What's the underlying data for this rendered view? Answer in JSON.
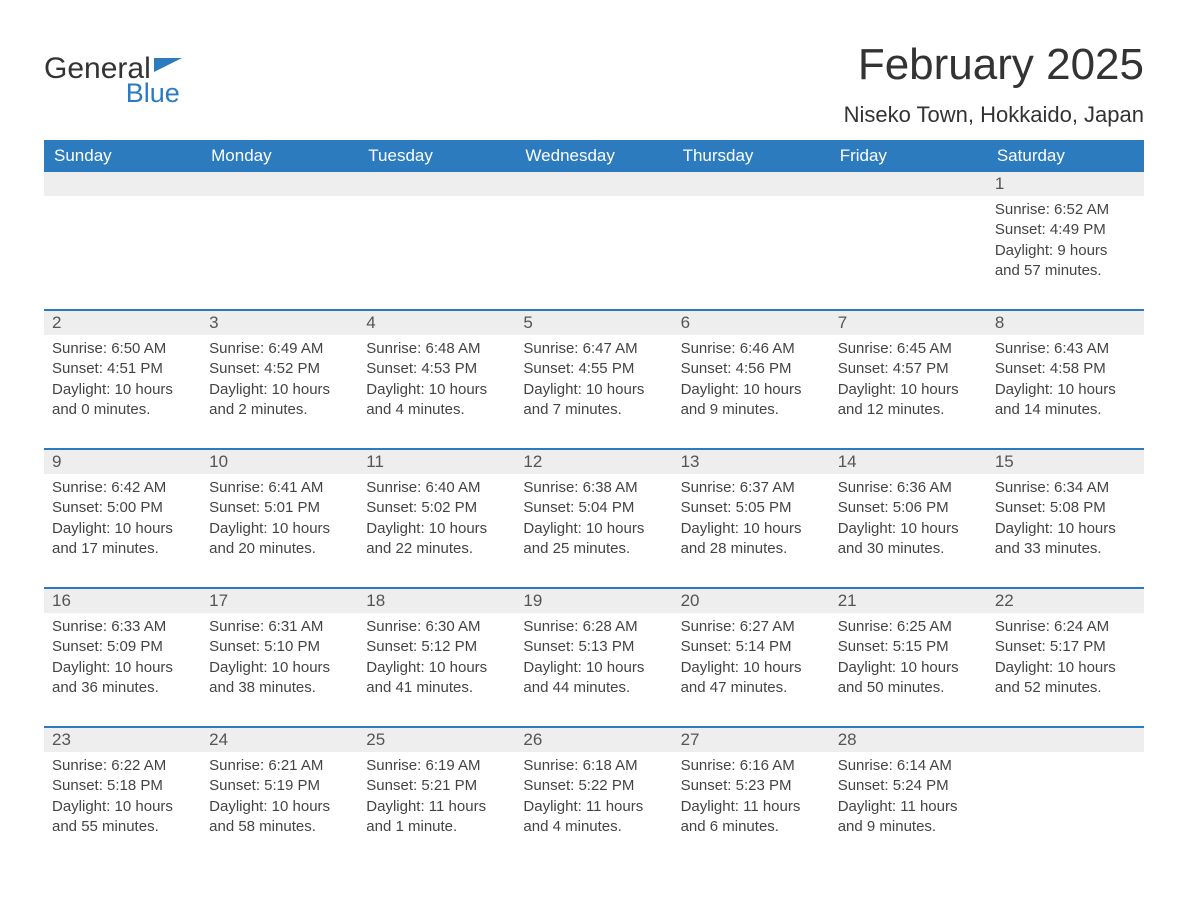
{
  "logo": {
    "part1": "General",
    "part2": "Blue"
  },
  "title": "February 2025",
  "location": "Niseko Town, Hokkaido, Japan",
  "colors": {
    "brand_blue": "#2c7bbf",
    "header_bg": "#2c7bbf",
    "header_text": "#ffffff",
    "daynum_bg": "#eeeeee",
    "daynum_text": "#555555",
    "body_text": "#444444",
    "page_bg": "#ffffff"
  },
  "weekdays": [
    "Sunday",
    "Monday",
    "Tuesday",
    "Wednesday",
    "Thursday",
    "Friday",
    "Saturday"
  ],
  "weeks": [
    [
      null,
      null,
      null,
      null,
      null,
      null,
      {
        "n": "1",
        "sr": "Sunrise: 6:52 AM",
        "ss": "Sunset: 4:49 PM",
        "dl": "Daylight: 9 hours and 57 minutes."
      }
    ],
    [
      {
        "n": "2",
        "sr": "Sunrise: 6:50 AM",
        "ss": "Sunset: 4:51 PM",
        "dl": "Daylight: 10 hours and 0 minutes."
      },
      {
        "n": "3",
        "sr": "Sunrise: 6:49 AM",
        "ss": "Sunset: 4:52 PM",
        "dl": "Daylight: 10 hours and 2 minutes."
      },
      {
        "n": "4",
        "sr": "Sunrise: 6:48 AM",
        "ss": "Sunset: 4:53 PM",
        "dl": "Daylight: 10 hours and 4 minutes."
      },
      {
        "n": "5",
        "sr": "Sunrise: 6:47 AM",
        "ss": "Sunset: 4:55 PM",
        "dl": "Daylight: 10 hours and 7 minutes."
      },
      {
        "n": "6",
        "sr": "Sunrise: 6:46 AM",
        "ss": "Sunset: 4:56 PM",
        "dl": "Daylight: 10 hours and 9 minutes."
      },
      {
        "n": "7",
        "sr": "Sunrise: 6:45 AM",
        "ss": "Sunset: 4:57 PM",
        "dl": "Daylight: 10 hours and 12 minutes."
      },
      {
        "n": "8",
        "sr": "Sunrise: 6:43 AM",
        "ss": "Sunset: 4:58 PM",
        "dl": "Daylight: 10 hours and 14 minutes."
      }
    ],
    [
      {
        "n": "9",
        "sr": "Sunrise: 6:42 AM",
        "ss": "Sunset: 5:00 PM",
        "dl": "Daylight: 10 hours and 17 minutes."
      },
      {
        "n": "10",
        "sr": "Sunrise: 6:41 AM",
        "ss": "Sunset: 5:01 PM",
        "dl": "Daylight: 10 hours and 20 minutes."
      },
      {
        "n": "11",
        "sr": "Sunrise: 6:40 AM",
        "ss": "Sunset: 5:02 PM",
        "dl": "Daylight: 10 hours and 22 minutes."
      },
      {
        "n": "12",
        "sr": "Sunrise: 6:38 AM",
        "ss": "Sunset: 5:04 PM",
        "dl": "Daylight: 10 hours and 25 minutes."
      },
      {
        "n": "13",
        "sr": "Sunrise: 6:37 AM",
        "ss": "Sunset: 5:05 PM",
        "dl": "Daylight: 10 hours and 28 minutes."
      },
      {
        "n": "14",
        "sr": "Sunrise: 6:36 AM",
        "ss": "Sunset: 5:06 PM",
        "dl": "Daylight: 10 hours and 30 minutes."
      },
      {
        "n": "15",
        "sr": "Sunrise: 6:34 AM",
        "ss": "Sunset: 5:08 PM",
        "dl": "Daylight: 10 hours and 33 minutes."
      }
    ],
    [
      {
        "n": "16",
        "sr": "Sunrise: 6:33 AM",
        "ss": "Sunset: 5:09 PM",
        "dl": "Daylight: 10 hours and 36 minutes."
      },
      {
        "n": "17",
        "sr": "Sunrise: 6:31 AM",
        "ss": "Sunset: 5:10 PM",
        "dl": "Daylight: 10 hours and 38 minutes."
      },
      {
        "n": "18",
        "sr": "Sunrise: 6:30 AM",
        "ss": "Sunset: 5:12 PM",
        "dl": "Daylight: 10 hours and 41 minutes."
      },
      {
        "n": "19",
        "sr": "Sunrise: 6:28 AM",
        "ss": "Sunset: 5:13 PM",
        "dl": "Daylight: 10 hours and 44 minutes."
      },
      {
        "n": "20",
        "sr": "Sunrise: 6:27 AM",
        "ss": "Sunset: 5:14 PM",
        "dl": "Daylight: 10 hours and 47 minutes."
      },
      {
        "n": "21",
        "sr": "Sunrise: 6:25 AM",
        "ss": "Sunset: 5:15 PM",
        "dl": "Daylight: 10 hours and 50 minutes."
      },
      {
        "n": "22",
        "sr": "Sunrise: 6:24 AM",
        "ss": "Sunset: 5:17 PM",
        "dl": "Daylight: 10 hours and 52 minutes."
      }
    ],
    [
      {
        "n": "23",
        "sr": "Sunrise: 6:22 AM",
        "ss": "Sunset: 5:18 PM",
        "dl": "Daylight: 10 hours and 55 minutes."
      },
      {
        "n": "24",
        "sr": "Sunrise: 6:21 AM",
        "ss": "Sunset: 5:19 PM",
        "dl": "Daylight: 10 hours and 58 minutes."
      },
      {
        "n": "25",
        "sr": "Sunrise: 6:19 AM",
        "ss": "Sunset: 5:21 PM",
        "dl": "Daylight: 11 hours and 1 minute."
      },
      {
        "n": "26",
        "sr": "Sunrise: 6:18 AM",
        "ss": "Sunset: 5:22 PM",
        "dl": "Daylight: 11 hours and 4 minutes."
      },
      {
        "n": "27",
        "sr": "Sunrise: 6:16 AM",
        "ss": "Sunset: 5:23 PM",
        "dl": "Daylight: 11 hours and 6 minutes."
      },
      {
        "n": "28",
        "sr": "Sunrise: 6:14 AM",
        "ss": "Sunset: 5:24 PM",
        "dl": "Daylight: 11 hours and 9 minutes."
      },
      null
    ]
  ]
}
